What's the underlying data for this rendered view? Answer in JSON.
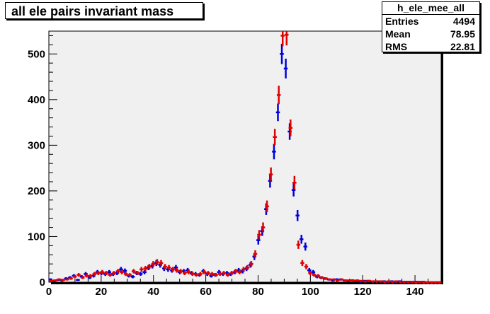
{
  "title": "all ele pairs invariant mass",
  "stats": {
    "name": "h_ele_mee_all",
    "rows": [
      {
        "label": "Entries",
        "value": "4494"
      },
      {
        "label": "Mean",
        "value": "78.95"
      },
      {
        "label": "RMS",
        "value": "22.81"
      }
    ]
  },
  "colors": {
    "blue_series": "#0000dd",
    "red_series": "#e00000",
    "frame_fill": "#f0f0f0",
    "canvas": "#ffffff"
  },
  "chart_data": {
    "type": "scatter",
    "title": "all ele pairs invariant mass",
    "xlabel": "",
    "ylabel": "",
    "xlim": [
      0,
      150
    ],
    "ylim": [
      0,
      550
    ],
    "x_ticks": [
      0,
      20,
      40,
      60,
      80,
      100,
      120,
      140
    ],
    "y_ticks": [
      0,
      100,
      200,
      300,
      400,
      500
    ],
    "grid": false,
    "error_bars": true,
    "bin_width": 1.5,
    "x": [
      0.75,
      2.25,
      3.75,
      5.25,
      6.75,
      8.25,
      9.75,
      11.25,
      12.75,
      14.25,
      15.75,
      17.25,
      18.75,
      20.25,
      21.75,
      23.25,
      24.75,
      26.25,
      27.75,
      29.25,
      30.75,
      32.25,
      33.75,
      35.25,
      36.75,
      38.25,
      39.75,
      41.25,
      42.75,
      44.25,
      45.75,
      47.25,
      48.75,
      50.25,
      51.75,
      53.25,
      54.75,
      56.25,
      57.75,
      59.25,
      60.75,
      62.25,
      63.75,
      65.25,
      66.75,
      68.25,
      69.75,
      71.25,
      72.75,
      74.25,
      75.75,
      77.25,
      78.75,
      80.25,
      81.75,
      83.25,
      84.75,
      86.25,
      87.75,
      89.25,
      90.75,
      92.25,
      93.75,
      95.25,
      96.75,
      98.25,
      99.75,
      101.25,
      102.75,
      104.25,
      105.75,
      107.25,
      108.75,
      110.25,
      111.75,
      113.25,
      114.75,
      116.25,
      117.75,
      119.25,
      120.75,
      122.25,
      123.75,
      125.25,
      126.75,
      128.25,
      129.75,
      131.25,
      132.75,
      134.25,
      135.75,
      137.25,
      138.75,
      140.25,
      141.75,
      143.25,
      144.75,
      146.25,
      147.75,
      149.25
    ],
    "series": [
      {
        "color": "#0000dd",
        "values": [
          6,
          3,
          5,
          4,
          8,
          10,
          14,
          5,
          12,
          18,
          10,
          14,
          22,
          20,
          18,
          22,
          18,
          20,
          28,
          25,
          14,
          12,
          20,
          18,
          22,
          32,
          36,
          42,
          38,
          30,
          28,
          26,
          32,
          22,
          24,
          26,
          20,
          18,
          16,
          24,
          18,
          14,
          16,
          22,
          18,
          20,
          18,
          22,
          26,
          24,
          30,
          38,
          56,
          92,
          112,
          160,
          222,
          286,
          372,
          500,
          468,
          330,
          202,
          146,
          94,
          78,
          26,
          22,
          12,
          10,
          8,
          6,
          4,
          6,
          6,
          4,
          3,
          4,
          3,
          2,
          3,
          3,
          2,
          2,
          2,
          2,
          1,
          2,
          1,
          2,
          1,
          1,
          1,
          1,
          1,
          1,
          0,
          0,
          0,
          0
        ]
      },
      {
        "color": "#e00000",
        "values": [
          3,
          4,
          6,
          5,
          6,
          8,
          12,
          16,
          10,
          14,
          14,
          18,
          20,
          22,
          20,
          16,
          20,
          24,
          22,
          18,
          16,
          24,
          20,
          28,
          30,
          34,
          40,
          44,
          42,
          34,
          32,
          28,
          26,
          24,
          20,
          22,
          18,
          16,
          18,
          22,
          20,
          18,
          16,
          18,
          20,
          16,
          20,
          24,
          22,
          28,
          32,
          40,
          62,
          104,
          120,
          166,
          236,
          318,
          410,
          540,
          542,
          338,
          218,
          82,
          42,
          34,
          20,
          16,
          14,
          10,
          8,
          6,
          6,
          4,
          6,
          4,
          4,
          3,
          4,
          3,
          2,
          3,
          2,
          2,
          2,
          1,
          2,
          1,
          2,
          1,
          1,
          1,
          1,
          0,
          1,
          0,
          0,
          0,
          0,
          0
        ]
      }
    ]
  }
}
